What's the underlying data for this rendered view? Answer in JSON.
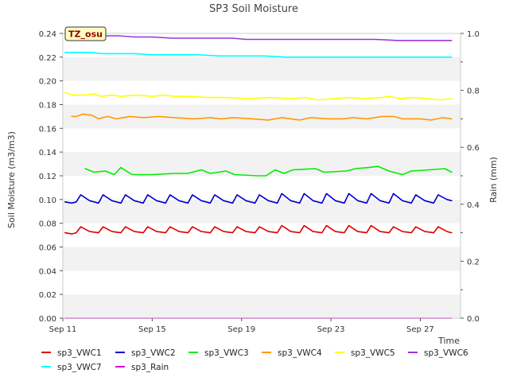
{
  "chart_data": {
    "type": "line",
    "title": "SP3 Soil Moisture",
    "badge": "TZ_osu",
    "xlabel": "Time",
    "ylabel": "Soil Moisture (m3/m3)",
    "y2label": "Rain (mm)",
    "xlim": [
      11,
      28.8
    ],
    "ylim": [
      0,
      0.24
    ],
    "y2lim": [
      0,
      1.0
    ],
    "xticks": [
      {
        "x": 11,
        "label": "Sep 11"
      },
      {
        "x": 15,
        "label": "Sep 15"
      },
      {
        "x": 19,
        "label": "Sep 19"
      },
      {
        "x": 23,
        "label": "Sep 23"
      },
      {
        "x": 27,
        "label": "Sep 27"
      }
    ],
    "yticks": [
      "0.00",
      "0.02",
      "0.04",
      "0.06",
      "0.08",
      "0.10",
      "0.12",
      "0.14",
      "0.16",
      "0.18",
      "0.20",
      "0.22",
      "0.24"
    ],
    "y2ticks": [
      "0.0",
      "0.2",
      "0.4",
      "0.6",
      "0.8",
      "1.0"
    ],
    "grid": "banded",
    "legend_position": "bottom",
    "series": [
      {
        "name": "sp3_VWC1",
        "color": "#dd0000",
        "axis": "left",
        "points": [
          [
            11.1,
            0.072
          ],
          [
            11.4,
            0.071
          ],
          [
            11.6,
            0.072
          ],
          [
            11.8,
            0.077
          ],
          [
            12.2,
            0.073
          ],
          [
            12.6,
            0.072
          ],
          [
            12.8,
            0.077
          ],
          [
            13.2,
            0.073
          ],
          [
            13.6,
            0.072
          ],
          [
            13.8,
            0.077
          ],
          [
            14.2,
            0.073
          ],
          [
            14.6,
            0.072
          ],
          [
            14.8,
            0.077
          ],
          [
            15.2,
            0.073
          ],
          [
            15.6,
            0.072
          ],
          [
            15.8,
            0.077
          ],
          [
            16.2,
            0.073
          ],
          [
            16.6,
            0.072
          ],
          [
            16.8,
            0.077
          ],
          [
            17.2,
            0.073
          ],
          [
            17.6,
            0.072
          ],
          [
            17.8,
            0.077
          ],
          [
            18.2,
            0.073
          ],
          [
            18.6,
            0.072
          ],
          [
            18.8,
            0.077
          ],
          [
            19.2,
            0.073
          ],
          [
            19.6,
            0.072
          ],
          [
            19.8,
            0.077
          ],
          [
            20.2,
            0.073
          ],
          [
            20.6,
            0.072
          ],
          [
            20.8,
            0.078
          ],
          [
            21.2,
            0.073
          ],
          [
            21.6,
            0.072
          ],
          [
            21.8,
            0.078
          ],
          [
            22.2,
            0.073
          ],
          [
            22.6,
            0.072
          ],
          [
            22.8,
            0.078
          ],
          [
            23.2,
            0.073
          ],
          [
            23.6,
            0.072
          ],
          [
            23.8,
            0.078
          ],
          [
            24.2,
            0.073
          ],
          [
            24.6,
            0.072
          ],
          [
            24.8,
            0.078
          ],
          [
            25.2,
            0.073
          ],
          [
            25.6,
            0.072
          ],
          [
            25.8,
            0.077
          ],
          [
            26.2,
            0.073
          ],
          [
            26.6,
            0.072
          ],
          [
            26.8,
            0.077
          ],
          [
            27.2,
            0.073
          ],
          [
            27.6,
            0.072
          ],
          [
            27.8,
            0.077
          ],
          [
            28.2,
            0.073
          ],
          [
            28.4,
            0.072
          ]
        ]
      },
      {
        "name": "sp3_VWC2",
        "color": "#0000cc",
        "axis": "left",
        "points": [
          [
            11.1,
            0.098
          ],
          [
            11.4,
            0.097
          ],
          [
            11.6,
            0.098
          ],
          [
            11.8,
            0.104
          ],
          [
            12.2,
            0.099
          ],
          [
            12.6,
            0.097
          ],
          [
            12.8,
            0.104
          ],
          [
            13.2,
            0.099
          ],
          [
            13.6,
            0.097
          ],
          [
            13.8,
            0.104
          ],
          [
            14.2,
            0.099
          ],
          [
            14.6,
            0.097
          ],
          [
            14.8,
            0.104
          ],
          [
            15.2,
            0.099
          ],
          [
            15.6,
            0.097
          ],
          [
            15.8,
            0.104
          ],
          [
            16.2,
            0.099
          ],
          [
            16.6,
            0.097
          ],
          [
            16.8,
            0.104
          ],
          [
            17.2,
            0.099
          ],
          [
            17.6,
            0.097
          ],
          [
            17.8,
            0.104
          ],
          [
            18.2,
            0.099
          ],
          [
            18.6,
            0.097
          ],
          [
            18.8,
            0.104
          ],
          [
            19.2,
            0.099
          ],
          [
            19.6,
            0.097
          ],
          [
            19.8,
            0.104
          ],
          [
            20.2,
            0.099
          ],
          [
            20.6,
            0.097
          ],
          [
            20.8,
            0.105
          ],
          [
            21.2,
            0.099
          ],
          [
            21.6,
            0.097
          ],
          [
            21.8,
            0.105
          ],
          [
            22.2,
            0.099
          ],
          [
            22.6,
            0.097
          ],
          [
            22.8,
            0.105
          ],
          [
            23.2,
            0.099
          ],
          [
            23.6,
            0.097
          ],
          [
            23.8,
            0.105
          ],
          [
            24.2,
            0.099
          ],
          [
            24.6,
            0.097
          ],
          [
            24.8,
            0.105
          ],
          [
            25.2,
            0.099
          ],
          [
            25.6,
            0.097
          ],
          [
            25.8,
            0.105
          ],
          [
            26.2,
            0.099
          ],
          [
            26.6,
            0.097
          ],
          [
            26.8,
            0.104
          ],
          [
            27.2,
            0.099
          ],
          [
            27.6,
            0.097
          ],
          [
            27.8,
            0.104
          ],
          [
            28.2,
            0.1
          ],
          [
            28.4,
            0.099
          ]
        ]
      },
      {
        "name": "sp3_VWC3",
        "color": "#00ee00",
        "axis": "left",
        "points": [
          [
            12.0,
            0.126
          ],
          [
            12.4,
            0.123
          ],
          [
            12.9,
            0.124
          ],
          [
            13.3,
            0.121
          ],
          [
            13.6,
            0.127
          ],
          [
            14.1,
            0.121
          ],
          [
            15.0,
            0.121
          ],
          [
            16.0,
            0.122
          ],
          [
            16.6,
            0.122
          ],
          [
            17.2,
            0.125
          ],
          [
            17.6,
            0.122
          ],
          [
            18.3,
            0.124
          ],
          [
            18.7,
            0.121
          ],
          [
            19.7,
            0.12
          ],
          [
            20.1,
            0.12
          ],
          [
            20.5,
            0.125
          ],
          [
            20.9,
            0.122
          ],
          [
            21.3,
            0.125
          ],
          [
            22.3,
            0.126
          ],
          [
            22.7,
            0.123
          ],
          [
            23.7,
            0.124
          ],
          [
            24.1,
            0.126
          ],
          [
            24.7,
            0.127
          ],
          [
            25.1,
            0.128
          ],
          [
            25.6,
            0.124
          ],
          [
            26.2,
            0.121
          ],
          [
            26.6,
            0.124
          ],
          [
            27.4,
            0.125
          ],
          [
            28.1,
            0.126
          ],
          [
            28.4,
            0.123
          ]
        ]
      },
      {
        "name": "sp3_VWC4",
        "color": "#ff9900",
        "axis": "left",
        "points": [
          [
            11.4,
            0.17
          ],
          [
            11.6,
            0.17
          ],
          [
            11.9,
            0.172
          ],
          [
            12.3,
            0.171
          ],
          [
            12.6,
            0.168
          ],
          [
            13.0,
            0.17
          ],
          [
            13.4,
            0.168
          ],
          [
            14.0,
            0.17
          ],
          [
            14.6,
            0.169
          ],
          [
            15.3,
            0.17
          ],
          [
            16.0,
            0.169
          ],
          [
            16.9,
            0.168
          ],
          [
            17.6,
            0.169
          ],
          [
            18.1,
            0.168
          ],
          [
            18.6,
            0.169
          ],
          [
            19.5,
            0.168
          ],
          [
            20.2,
            0.167
          ],
          [
            20.8,
            0.169
          ],
          [
            21.6,
            0.167
          ],
          [
            22.1,
            0.169
          ],
          [
            22.9,
            0.168
          ],
          [
            23.5,
            0.168
          ],
          [
            24.0,
            0.169
          ],
          [
            24.6,
            0.168
          ],
          [
            25.3,
            0.17
          ],
          [
            25.8,
            0.17
          ],
          [
            26.2,
            0.168
          ],
          [
            27.0,
            0.168
          ],
          [
            27.5,
            0.167
          ],
          [
            28.0,
            0.169
          ],
          [
            28.4,
            0.168
          ]
        ]
      },
      {
        "name": "sp3_VWC5",
        "color": "#ffff00",
        "axis": "left",
        "points": [
          [
            11.1,
            0.19
          ],
          [
            11.5,
            0.188
          ],
          [
            12.0,
            0.188
          ],
          [
            12.4,
            0.189
          ],
          [
            12.7,
            0.187
          ],
          [
            13.2,
            0.188
          ],
          [
            13.6,
            0.187
          ],
          [
            14.3,
            0.188
          ],
          [
            15.0,
            0.187
          ],
          [
            15.5,
            0.188
          ],
          [
            16.0,
            0.187
          ],
          [
            16.6,
            0.187
          ],
          [
            17.5,
            0.186
          ],
          [
            18.3,
            0.186
          ],
          [
            19.4,
            0.185
          ],
          [
            20.3,
            0.186
          ],
          [
            21.2,
            0.185
          ],
          [
            21.8,
            0.186
          ],
          [
            22.4,
            0.184
          ],
          [
            23.2,
            0.185
          ],
          [
            23.8,
            0.186
          ],
          [
            24.5,
            0.185
          ],
          [
            25.3,
            0.186
          ],
          [
            25.6,
            0.187
          ],
          [
            26.1,
            0.185
          ],
          [
            26.7,
            0.186
          ],
          [
            27.3,
            0.185
          ],
          [
            27.9,
            0.184
          ],
          [
            28.4,
            0.185
          ]
        ]
      },
      {
        "name": "sp3_VWC6",
        "color": "#9933dd",
        "axis": "left",
        "points": [
          [
            12.4,
            0.239
          ],
          [
            12.9,
            0.238
          ],
          [
            13.5,
            0.238
          ],
          [
            14.2,
            0.237
          ],
          [
            15.0,
            0.237
          ],
          [
            15.9,
            0.236
          ],
          [
            16.8,
            0.236
          ],
          [
            17.8,
            0.236
          ],
          [
            18.6,
            0.236
          ],
          [
            19.2,
            0.235
          ],
          [
            20.0,
            0.235
          ],
          [
            21.0,
            0.235
          ],
          [
            22.0,
            0.235
          ],
          [
            23.0,
            0.235
          ],
          [
            24.0,
            0.235
          ],
          [
            25.0,
            0.235
          ],
          [
            26.0,
            0.234
          ],
          [
            27.0,
            0.234
          ],
          [
            27.8,
            0.234
          ],
          [
            28.4,
            0.234
          ]
        ]
      },
      {
        "name": "sp3_VWC7",
        "color": "#00ffff",
        "axis": "left",
        "points": [
          [
            11.1,
            0.224
          ],
          [
            11.6,
            0.224
          ],
          [
            12.2,
            0.224
          ],
          [
            12.8,
            0.223
          ],
          [
            13.5,
            0.223
          ],
          [
            14.2,
            0.223
          ],
          [
            15.0,
            0.222
          ],
          [
            16.0,
            0.222
          ],
          [
            17.0,
            0.222
          ],
          [
            18.0,
            0.221
          ],
          [
            18.7,
            0.221
          ],
          [
            19.2,
            0.221
          ],
          [
            20.0,
            0.221
          ],
          [
            21.0,
            0.22
          ],
          [
            22.0,
            0.22
          ],
          [
            23.0,
            0.22
          ],
          [
            24.0,
            0.22
          ],
          [
            25.0,
            0.22
          ],
          [
            26.0,
            0.22
          ],
          [
            27.0,
            0.22
          ],
          [
            28.0,
            0.22
          ],
          [
            28.4,
            0.22
          ]
        ]
      },
      {
        "name": "sp3_Rain",
        "color": "#dd00dd",
        "axis": "right",
        "points": [
          [
            11.1,
            0.0
          ],
          [
            28.4,
            0.0
          ]
        ]
      }
    ]
  }
}
